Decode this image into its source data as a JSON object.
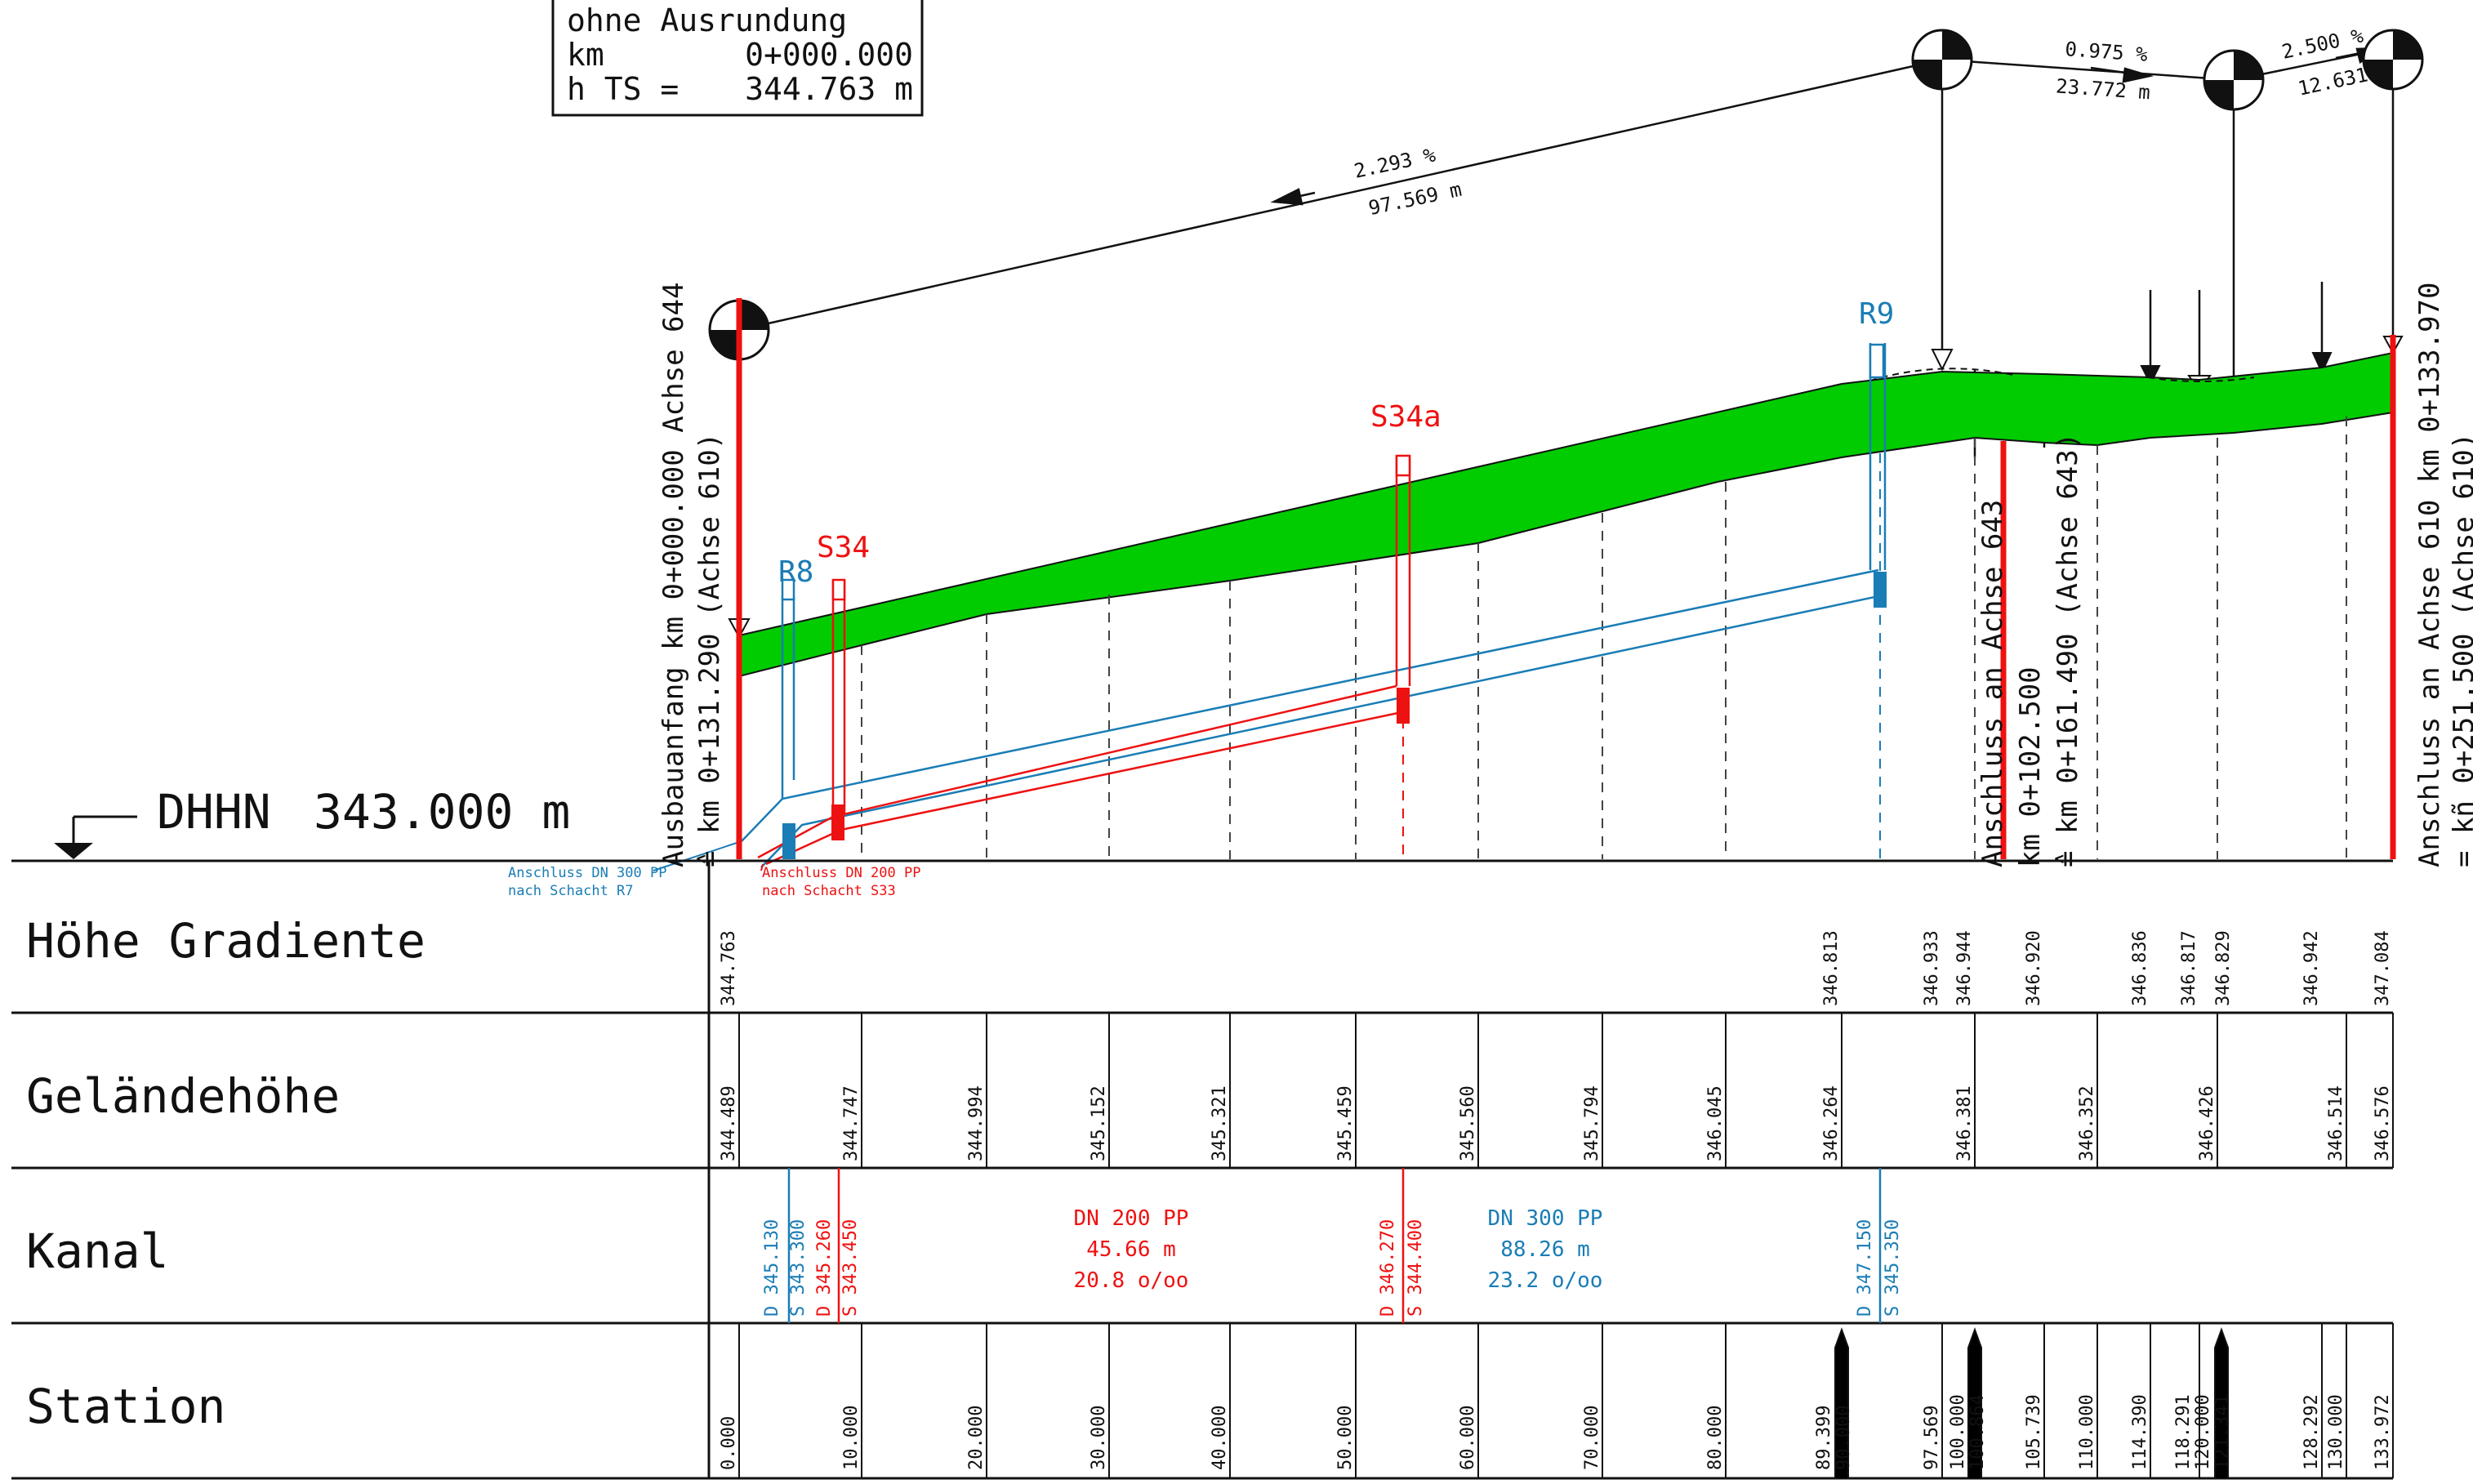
{
  "info_box": {
    "line1": "ohne Ausrundung",
    "line2_label": "km",
    "line2_value": "0+000.000",
    "line3_label": "h TS =",
    "line3_value": "344.763 m"
  },
  "datum": {
    "label": "DHHN",
    "value": "343.000 m"
  },
  "grades": [
    {
      "percent": "2.293 %",
      "length": "97.569 m"
    },
    {
      "percent": "0.975 %",
      "length": "23.772 m"
    },
    {
      "percent": "2.500 %",
      "length": "12.631 m"
    }
  ],
  "shafts": {
    "r8": "R8",
    "s34": "S34",
    "s34a": "S34a",
    "r9": "R9"
  },
  "vertical_notes": {
    "start_line1": "Ausbauanfang km 0+000.000 Achse 644",
    "start_line2": "≙ km 0+131.290 (Achse 610)",
    "mid_line1": "Anschluss an Achse 643",
    "mid_line2": "km 0+102.500",
    "mid_line3": "≙ km 0+161.490 (Achse 643)",
    "end_line1": "Anschluss an Achse 610 km 0+133.970",
    "end_line2": "= kñ 0+251.500 (Achse 610)"
  },
  "connections": {
    "blue_line1": "Anschluss DN 300 PP",
    "blue_line2": "nach Schacht R7",
    "red_line1": "Anschluss DN 200 PP",
    "red_line2": "nach Schacht S33"
  },
  "table_rows": [
    "Höhe Gradiente",
    "Geländehöhe",
    "Kanal",
    "Station"
  ],
  "hoehe_gradiente": [
    "344.763",
    "346.813",
    "346.933",
    "346.944",
    "346.920",
    "346.836",
    "346.817",
    "346.829",
    "346.942",
    "347.084"
  ],
  "gelaendehoehe": [
    "344.489",
    "344.747",
    "344.994",
    "345.152",
    "345.321",
    "345.459",
    "345.560",
    "345.794",
    "346.045",
    "346.264",
    "346.381",
    "346.352",
    "346.426",
    "346.514",
    "346.576"
  ],
  "kanal": {
    "r8_d": "D 345.130",
    "r8_s": "S 343.300",
    "s34_d": "D 345.260",
    "s34_s": "S 343.450",
    "s34a_d": "D 346.270",
    "s34a_s": "S 344.400",
    "r9_d": "D 347.150",
    "r9_s": "S 345.350",
    "red_pipe_line1": "DN 200 PP",
    "red_pipe_line2": "45.66 m",
    "red_pipe_line3": "20.8 o/oo",
    "blue_pipe_line1": "DN 300 PP",
    "blue_pipe_line2": "88.26 m",
    "blue_pipe_line3": "23.2 o/oo"
  },
  "station": [
    "0.000",
    "10.000",
    "20.000",
    "30.000",
    "40.000",
    "50.000",
    "60.000",
    "70.000",
    "80.000",
    "89.399",
    "90.000",
    "97.569",
    "100.000",
    "100.864",
    "105.739",
    "110.000",
    "114.390",
    "118.291",
    "120.000",
    "121.341",
    "128.292",
    "130.000",
    "133.972"
  ],
  "colors": {
    "terrain_fill": "#00cc00",
    "red": "#ee1111",
    "blue": "#1a7db5",
    "line": "#111111"
  }
}
